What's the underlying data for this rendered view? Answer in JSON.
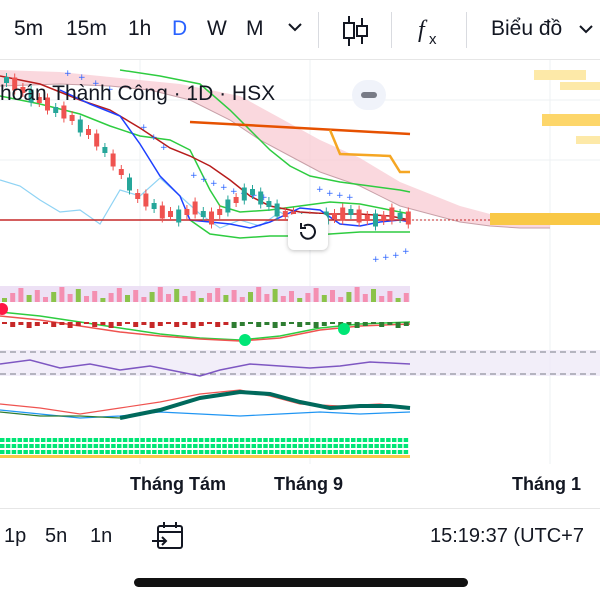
{
  "toolbar": {
    "timeframes": [
      "5m",
      "15m",
      "1h",
      "D",
      "W",
      "M"
    ],
    "active_timeframe": "D",
    "more_icon": "chevron-down-icon",
    "candles_icon": "candlestick-icon",
    "indicators_icon": "fx-icon",
    "layout_label": "Biểu đồ",
    "layout_icon": "chevron-down-icon"
  },
  "chart": {
    "symbol_title": "hoán Thành Công · 1D · HSX",
    "menu_icon": "more-icon",
    "reset_icon": "reset-icon",
    "x_labels": [
      "Tháng Tám",
      "Tháng 9",
      "Tháng 1"
    ],
    "colors": {
      "up": "#26a69a",
      "down": "#ef5350",
      "cloud": "#f8c8d0",
      "orange": "#f5a623",
      "orange_dark": "#e65100",
      "green_line": "#2ecc40",
      "blue_line": "#1e40ff",
      "dark_red": "#b71c1c",
      "price_line": "#c62828"
    }
  },
  "bottom": {
    "ranges": [
      "1p",
      "5n",
      "1n"
    ],
    "goto_icon": "calendar-goto-icon",
    "clock": "15:19:37 (UTC+7"
  }
}
